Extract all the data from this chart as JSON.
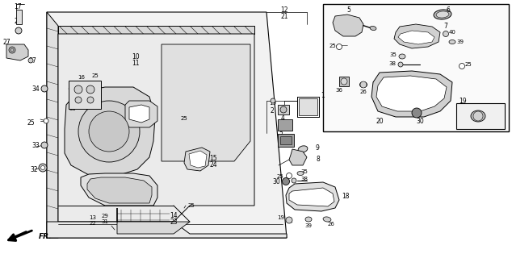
{
  "bg": "#ffffff",
  "fw": 6.34,
  "fh": 3.2,
  "dpi": 100,
  "lc": "#000000"
}
